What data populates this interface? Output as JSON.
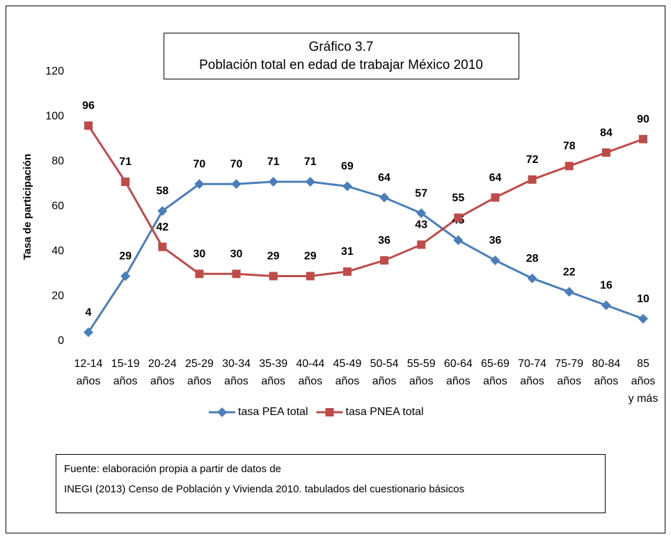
{
  "chart_data": {
    "type": "line",
    "title": "Gráfico 3.7",
    "subtitle": "Población total en edad de trabajar México 2010",
    "y_label": "Tasa de participación",
    "categories": [
      "12-14 años",
      "15-19 años",
      "20-24 años",
      "25-29 años",
      "30-34 años",
      "35-39 años",
      "40-44 años",
      "45-49 años",
      "50-54 años",
      "55-59 años",
      "60-64 años",
      "65-69 años",
      "70-74 años",
      "75-79 años",
      "80-84 años",
      "85 años y más"
    ],
    "series": [
      {
        "name": "tasa PEA total",
        "color": "#4a7ebb",
        "marker": "diamond",
        "values": [
          4,
          29,
          58,
          70,
          70,
          71,
          71,
          69,
          64,
          57,
          45,
          36,
          28,
          22,
          16,
          10
        ]
      },
      {
        "name": "tasa PNEA total",
        "color": "#be4b48",
        "marker": "square",
        "values": [
          96,
          71,
          42,
          30,
          30,
          29,
          29,
          31,
          36,
          43,
          55,
          64,
          72,
          78,
          84,
          90
        ]
      }
    ],
    "ylim": [
      0,
      120
    ],
    "yticks": [
      0,
      20,
      40,
      60,
      80,
      100,
      120
    ],
    "grid": false,
    "legend": "bottom",
    "source": [
      "Fuente: elaboración propia a partir de datos de",
      "INEGI (2013) Censo de Población y Vivienda 2010. tabulados del cuestionario básicos"
    ]
  }
}
